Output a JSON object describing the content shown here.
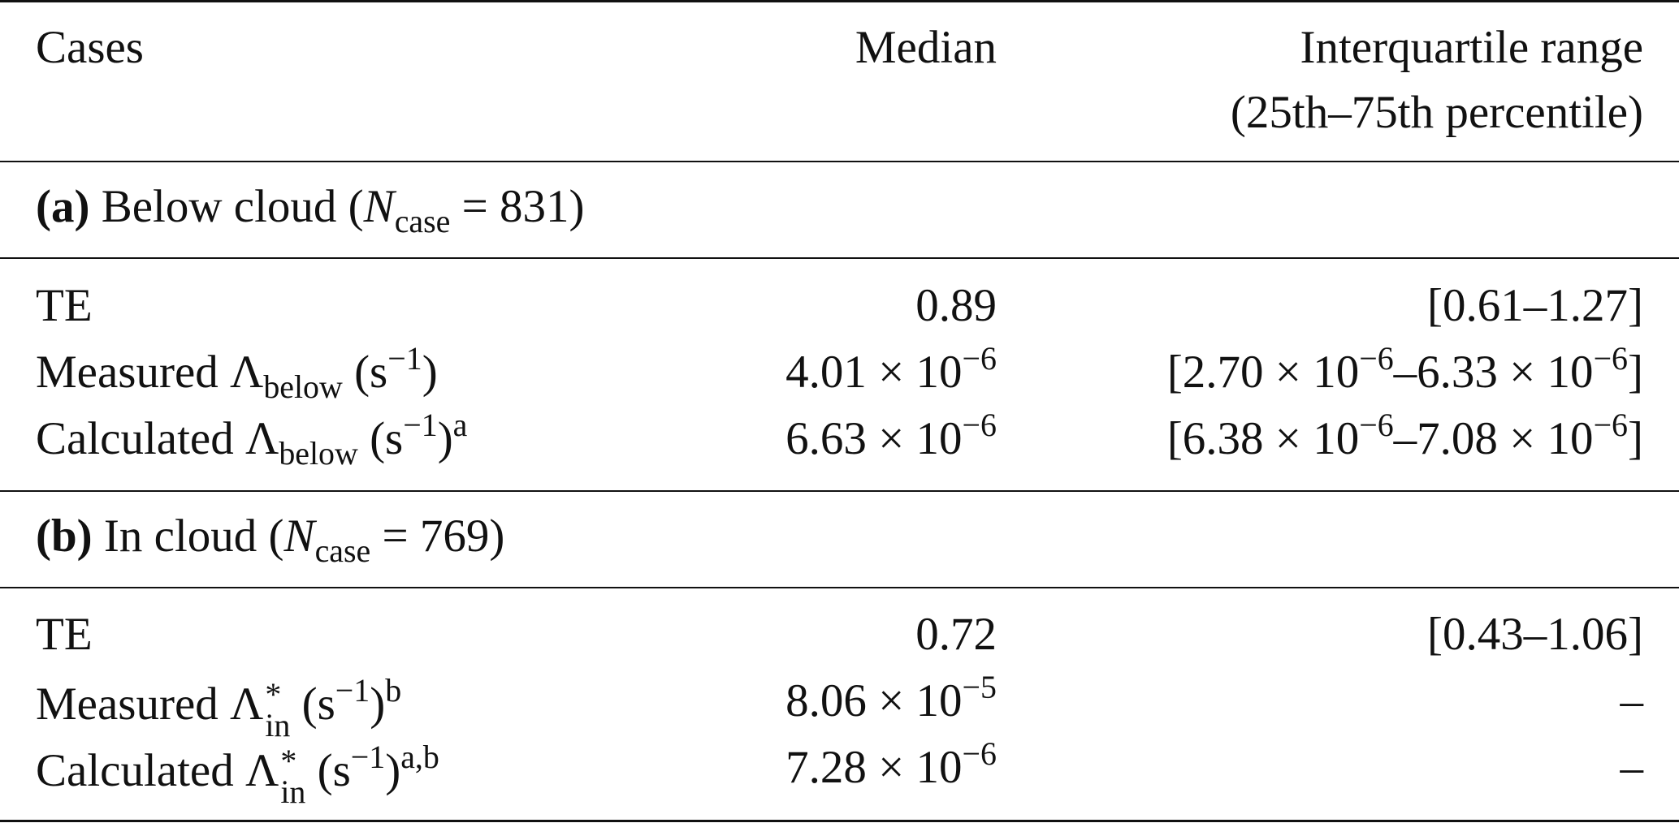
{
  "table": {
    "header": {
      "cases": "Cases",
      "median": "Median",
      "iqr_line1": "Interquartile range",
      "iqr_line2": "(25th–75th percentile)"
    },
    "section_a": {
      "label": "(a)",
      "title_prefix": "Below cloud (",
      "n_symbol": "N",
      "n_sub": "case",
      "n_value": " = 831)"
    },
    "section_b": {
      "label": "(b)",
      "title_prefix": "In cloud (",
      "n_symbol": "N",
      "n_sub": "case",
      "n_value": " = 769)"
    },
    "rows_a": [
      {
        "name": "TE",
        "median": "0.89",
        "iqr": "[0.61–1.27]"
      },
      {
        "prefix": "Measured Λ",
        "sub": "below",
        "unit": " (s",
        "unit_exp": "−1",
        "unit_close": ")",
        "note": "",
        "median_base": "4.01 × 10",
        "median_exp": "−6",
        "iqr_a": "[2.70 × 10",
        "iqr_a_exp": "−6",
        "iqr_b": "–6.33 × 10",
        "iqr_b_exp": "−6",
        "iqr_end": "]"
      },
      {
        "prefix": "Calculated Λ",
        "sub": "below",
        "unit": " (s",
        "unit_exp": "−1",
        "unit_close": ")",
        "note": "a",
        "median_base": "6.63 × 10",
        "median_exp": "−6",
        "iqr_a": "[6.38 × 10",
        "iqr_a_exp": "−6",
        "iqr_b": "–7.08 × 10",
        "iqr_b_exp": "−6",
        "iqr_end": "]"
      }
    ],
    "rows_b": [
      {
        "name": "TE",
        "median": "0.72",
        "iqr": "[0.43–1.06]"
      },
      {
        "prefix": "Measured Λ",
        "sup": "*",
        "sub": "in",
        "unit": " (s",
        "unit_exp": "−1",
        "unit_close": ")",
        "note": "b",
        "median_base": "8.06 × 10",
        "median_exp": "−5",
        "iqr": "–"
      },
      {
        "prefix": "Calculated Λ",
        "sup": "*",
        "sub": "in",
        "unit": " (s",
        "unit_exp": "−1",
        "unit_close": ")",
        "note": "a,b",
        "median_base": "7.28 × 10",
        "median_exp": "−6",
        "iqr": "–"
      }
    ]
  }
}
